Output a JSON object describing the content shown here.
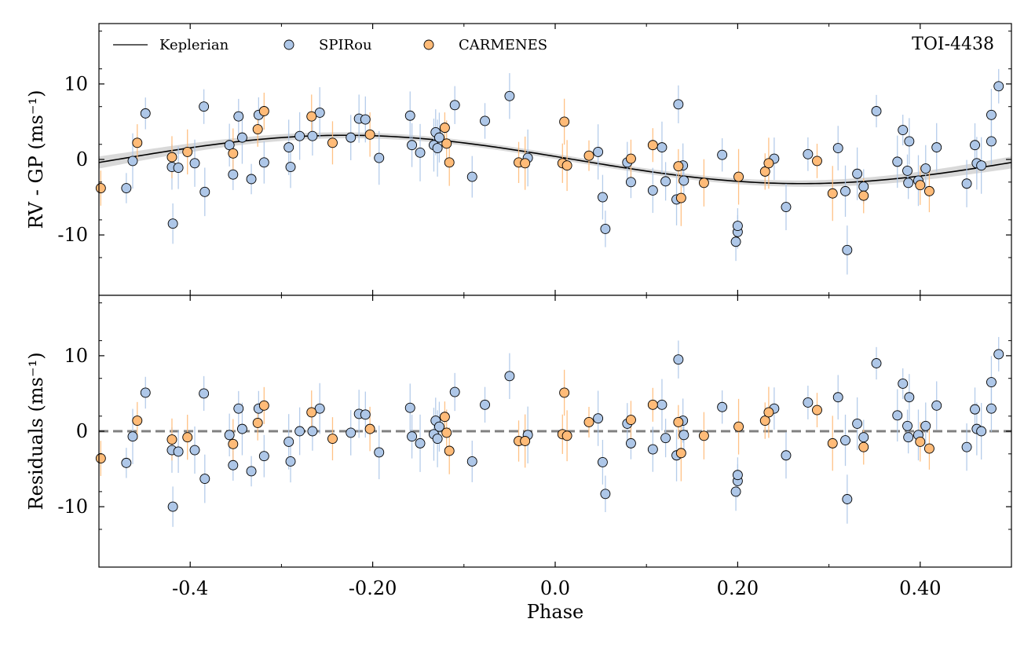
{
  "chart_data": [
    {
      "type": "scatter",
      "panel": "top",
      "ylabel": "RV - GP (ms⁻¹)",
      "xlim": [
        -0.5,
        0.5
      ],
      "ylim": [
        -18,
        18
      ],
      "yticks": [
        -10,
        0,
        10
      ],
      "annotation": "TOI-4438",
      "legend": {
        "placement": "top-left",
        "entries": [
          {
            "label": "Keplerian",
            "marker": "line"
          },
          {
            "label": "SPIRou",
            "marker": "circle"
          },
          {
            "label": "CARMENES",
            "marker": "circle"
          }
        ]
      },
      "model_label": "Keplerian",
      "model": {
        "amplitude": 3.2,
        "peak_phase": -0.23
      },
      "series": [
        {
          "name": "SPIRou",
          "x": [
            -0.47,
            -0.463,
            -0.449,
            -0.42,
            -0.419,
            -0.413,
            -0.395,
            -0.385,
            -0.384,
            -0.357,
            -0.353,
            -0.347,
            -0.343,
            -0.333,
            -0.325,
            -0.319,
            -0.292,
            -0.29,
            -0.28,
            -0.266,
            -0.258,
            -0.224,
            -0.215,
            -0.208,
            -0.193,
            -0.159,
            -0.157,
            -0.148,
            -0.133,
            -0.131,
            -0.129,
            -0.127,
            -0.11,
            -0.091,
            -0.077,
            -0.05,
            -0.03,
            0.047,
            0.052,
            0.055,
            0.079,
            0.083,
            0.107,
            0.117,
            0.121,
            0.133,
            0.135,
            0.14,
            0.141,
            0.183,
            0.198,
            0.2,
            0.2,
            0.24,
            0.253,
            0.277,
            0.31,
            0.318,
            0.32,
            0.331,
            0.338,
            0.352,
            0.375,
            0.381,
            0.386,
            0.387,
            0.388,
            0.398,
            0.406,
            0.418,
            0.451,
            0.46,
            0.462,
            0.467,
            0.478,
            0.478,
            0.486
          ],
          "y": [
            -3.8,
            -0.2,
            6.1,
            -1.0,
            -8.5,
            -1.1,
            -0.5,
            7.0,
            -4.3,
            1.9,
            -2.0,
            5.7,
            2.9,
            -2.6,
            5.9,
            -0.4,
            1.6,
            -1.0,
            3.1,
            3.1,
            6.2,
            2.9,
            5.4,
            5.3,
            0.2,
            5.8,
            1.9,
            0.9,
            1.9,
            3.6,
            1.5,
            2.9,
            7.2,
            -2.3,
            5.1,
            8.4,
            0.2,
            1.0,
            -5.0,
            -9.2,
            -0.4,
            -3.0,
            -4.1,
            1.6,
            -2.9,
            -5.3,
            7.3,
            -0.8,
            -2.8,
            0.6,
            -10.9,
            -9.6,
            -8.8,
            0.1,
            -6.3,
            0.7,
            1.5,
            -4.2,
            -12.0,
            -1.9,
            -3.6,
            6.4,
            -0.3,
            3.9,
            -1.5,
            -3.1,
            2.4,
            -2.8,
            -1.2,
            1.6,
            -3.2,
            1.9,
            -0.5,
            -0.8,
            5.9,
            2.4,
            9.7
          ]
        },
        {
          "name": "CARMENES",
          "x": [
            -0.498,
            -0.458,
            -0.42,
            -0.403,
            -0.353,
            -0.326,
            -0.319,
            -0.267,
            -0.244,
            -0.203,
            -0.121,
            -0.119,
            -0.116,
            -0.04,
            -0.033,
            0.008,
            0.01,
            0.013,
            0.037,
            0.083,
            0.107,
            0.135,
            0.138,
            0.163,
            0.201,
            0.23,
            0.234,
            0.287,
            0.304,
            0.338,
            0.4,
            0.41
          ],
          "y": [
            -3.8,
            2.2,
            0.3,
            1.0,
            0.8,
            4.0,
            6.4,
            5.7,
            2.2,
            3.3,
            4.2,
            2.1,
            -0.4,
            -0.4,
            -0.5,
            -0.5,
            5.0,
            -0.8,
            0.5,
            0.1,
            1.9,
            -0.9,
            -5.1,
            -3.1,
            -2.3,
            -1.6,
            -0.5,
            -0.2,
            -4.5,
            -4.8,
            -3.4,
            -4.2
          ]
        }
      ]
    },
    {
      "type": "scatter",
      "panel": "bottom",
      "xlabel": "Phase",
      "ylabel": "Residuals (ms⁻¹)",
      "xlim": [
        -0.5,
        0.5
      ],
      "ylim": [
        -18,
        18
      ],
      "xticks": [
        "-0.4",
        "-0.20",
        "0.0",
        "0.20",
        "0.40"
      ],
      "xtick_values": [
        -0.4,
        -0.2,
        0.0,
        0.2,
        0.4
      ],
      "yticks": [
        -10,
        0,
        10
      ],
      "reference_line": 0,
      "series": [
        {
          "name": "SPIRou",
          "x": [
            -0.47,
            -0.463,
            -0.449,
            -0.42,
            -0.419,
            -0.413,
            -0.395,
            -0.385,
            -0.384,
            -0.357,
            -0.353,
            -0.347,
            -0.343,
            -0.333,
            -0.325,
            -0.319,
            -0.292,
            -0.29,
            -0.28,
            -0.266,
            -0.258,
            -0.224,
            -0.215,
            -0.208,
            -0.193,
            -0.159,
            -0.157,
            -0.148,
            -0.133,
            -0.131,
            -0.129,
            -0.127,
            -0.11,
            -0.091,
            -0.077,
            -0.05,
            -0.03,
            0.047,
            0.052,
            0.055,
            0.079,
            0.083,
            0.107,
            0.117,
            0.121,
            0.133,
            0.135,
            0.14,
            0.141,
            0.183,
            0.198,
            0.2,
            0.2,
            0.24,
            0.253,
            0.277,
            0.31,
            0.318,
            0.32,
            0.331,
            0.338,
            0.352,
            0.375,
            0.381,
            0.386,
            0.387,
            0.388,
            0.398,
            0.406,
            0.418,
            0.451,
            0.46,
            0.462,
            0.467,
            0.478,
            0.478,
            0.486
          ],
          "y": [
            -4.2,
            -0.7,
            5.1,
            -2.5,
            -10.0,
            -2.7,
            -2.5,
            5.0,
            -6.3,
            -0.5,
            -4.5,
            3.0,
            0.3,
            -5.3,
            3.0,
            -3.3,
            -1.4,
            -4.0,
            0.0,
            0.0,
            3.0,
            -0.2,
            2.3,
            2.2,
            -2.8,
            3.1,
            -0.7,
            -1.6,
            -0.4,
            1.4,
            -1.0,
            0.6,
            5.2,
            -4.0,
            3.5,
            7.3,
            -0.5,
            1.7,
            -4.1,
            -8.3,
            1.0,
            -1.6,
            -2.4,
            3.5,
            -0.9,
            -3.2,
            9.5,
            1.4,
            -0.5,
            3.2,
            -8.0,
            -6.6,
            -5.8,
            3.0,
            -3.2,
            3.8,
            4.5,
            -1.2,
            -9.0,
            1.0,
            -0.8,
            9.0,
            2.1,
            6.3,
            0.7,
            -0.8,
            4.5,
            -0.5,
            0.7,
            3.4,
            -2.1,
            2.9,
            0.3,
            0.0,
            6.5,
            3.0,
            10.2
          ]
        },
        {
          "name": "CARMENES",
          "x": [
            -0.498,
            -0.458,
            -0.42,
            -0.403,
            -0.353,
            -0.326,
            -0.319,
            -0.267,
            -0.244,
            -0.203,
            -0.121,
            -0.119,
            -0.116,
            -0.04,
            -0.033,
            0.008,
            0.01,
            0.013,
            0.037,
            0.083,
            0.107,
            0.135,
            0.138,
            0.163,
            0.201,
            0.23,
            0.234,
            0.287,
            0.304,
            0.338,
            0.4,
            0.41
          ],
          "y": [
            -3.6,
            1.4,
            -1.1,
            -0.8,
            -1.7,
            1.1,
            3.4,
            2.5,
            -1.0,
            0.3,
            1.9,
            -0.2,
            -2.6,
            -1.3,
            -1.3,
            -0.4,
            5.1,
            -0.6,
            1.2,
            1.5,
            3.5,
            1.2,
            -2.9,
            -0.6,
            0.6,
            1.4,
            2.5,
            2.8,
            -1.6,
            -2.1,
            -1.4,
            -2.3
          ]
        }
      ]
    }
  ],
  "colors": {
    "spirou": "#aec7e8",
    "carmenes": "#ffbb78",
    "spirou_err": "#aec7e8",
    "carmenes_err": "#ffbb78",
    "model": "#000000",
    "model_band": "#d0d0d0",
    "zero_line": "#808080"
  }
}
